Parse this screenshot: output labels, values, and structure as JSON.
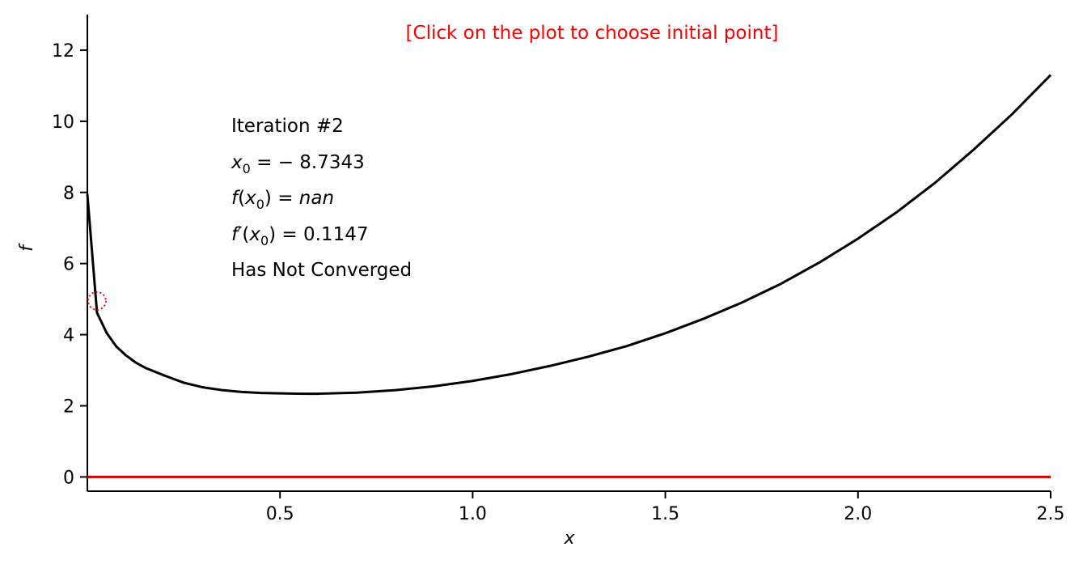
{
  "notice": "[Click on the plot to choose initial point]",
  "colors": {
    "curve": "#000000",
    "zero_line": "#cc0000",
    "notice": "#ff0000",
    "marker": "#ff0000"
  },
  "annotations": {
    "iteration": "Iteration #2",
    "x0_sym": "x",
    "x0_sub": "0",
    "x0_val": " = − 8.7343",
    "f_sym": "f",
    "f_open": "(",
    "f_x": "x",
    "f_sub": "0",
    "f_close": ") = ",
    "f_val": "nan",
    "fp_sym": "f′",
    "fp_open": "(",
    "fp_x": "x",
    "fp_sub": "0",
    "fp_close": ") = 0.1147",
    "status": "Has Not Converged"
  },
  "chart_data": {
    "type": "line",
    "title": "",
    "xlabel": "x",
    "ylabel": "f",
    "xlim": [
      0.0,
      2.5
    ],
    "ylim": [
      -0.4,
      13.0
    ],
    "xticks": [
      0.5,
      1.0,
      1.5,
      2.0,
      2.5
    ],
    "xtick_labels": [
      "0.5",
      "1.0",
      "1.5",
      "2.0",
      "2.5"
    ],
    "yticks": [
      0,
      2,
      4,
      6,
      8,
      10,
      12
    ],
    "ytick_labels": [
      "0",
      "2",
      "4",
      "6",
      "8",
      "10",
      "12"
    ],
    "grid": false,
    "series": [
      {
        "x": [
          0.0,
          0.025,
          0.05,
          0.075,
          0.1,
          0.125,
          0.15,
          0.2,
          0.25,
          0.3,
          0.35,
          0.4,
          0.45,
          0.5,
          0.55,
          0.6,
          0.7,
          0.8,
          0.9,
          1.0,
          1.1,
          1.2,
          1.3,
          1.4,
          1.5,
          1.6,
          1.7,
          1.8,
          1.9,
          2.0,
          2.1,
          2.2,
          2.3,
          2.4,
          2.5
        ],
        "y": [
          7.95,
          4.62,
          4.05,
          3.67,
          3.42,
          3.22,
          3.07,
          2.85,
          2.65,
          2.52,
          2.44,
          2.39,
          2.36,
          2.35,
          2.34,
          2.34,
          2.37,
          2.44,
          2.55,
          2.7,
          2.89,
          3.12,
          3.38,
          3.68,
          4.04,
          4.45,
          4.91,
          5.43,
          6.03,
          6.7,
          7.44,
          8.27,
          9.2,
          10.2,
          11.3
        ]
      },
      {
        "x": [
          0.0,
          2.5
        ],
        "y": [
          0.0,
          0.0
        ]
      }
    ],
    "marker": {
      "x": 0.025,
      "y": 4.95
    }
  }
}
